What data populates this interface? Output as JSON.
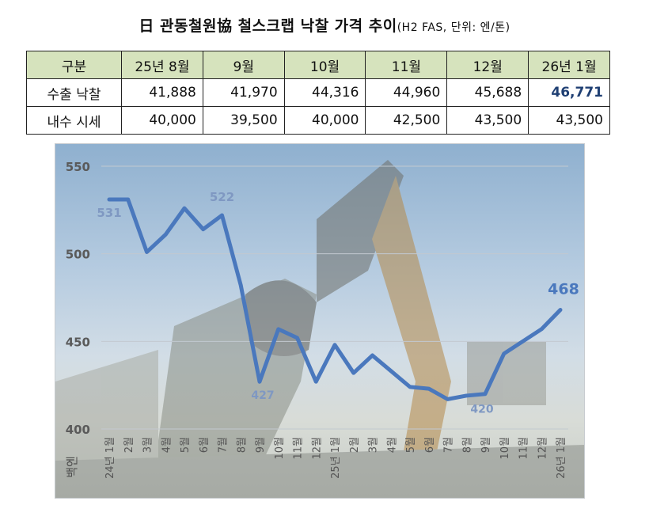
{
  "title": {
    "main": "日 관동철원協 철스크랩 낙찰 가격 추이",
    "sub": "(H2 FAS, 단위: 엔/톤)"
  },
  "table": {
    "header": [
      "구분",
      "25년 8월",
      "9월",
      "10월",
      "11월",
      "12월",
      "26년 1월"
    ],
    "rows": [
      {
        "label": "수출 낙찰",
        "values": [
          "41,888",
          "41,970",
          "44,316",
          "44,960",
          "45,688",
          "46,771"
        ]
      },
      {
        "label": "내수 시세",
        "values": [
          "40,000",
          "39,500",
          "40,000",
          "42,500",
          "43,500",
          "43,500"
        ]
      }
    ]
  },
  "chart_data": {
    "type": "line",
    "ylabel": "백엔",
    "ylim": [
      400,
      550
    ],
    "yticks": [
      "400",
      "450",
      "500",
      "550"
    ],
    "categories": [
      "24년 1월",
      "2월",
      "3월",
      "4월",
      "5월",
      "6월",
      "7월",
      "8월",
      "9월",
      "10월",
      "11월",
      "12월",
      "25년 1월",
      "2월",
      "3월",
      "4월",
      "5월",
      "6월",
      "7월",
      "8월",
      "9월",
      "10월",
      "11월",
      "12월",
      "26년 1월"
    ],
    "values": [
      531,
      531,
      501,
      511,
      526,
      514,
      522,
      482,
      427,
      457,
      452,
      427,
      448,
      432,
      442,
      433,
      424,
      423,
      417,
      419,
      420,
      443,
      450,
      457,
      468
    ],
    "annotations": [
      {
        "index": 0,
        "text": "531"
      },
      {
        "index": 6,
        "text": "522"
      },
      {
        "index": 8,
        "text": "427"
      },
      {
        "index": 20,
        "text": "420"
      },
      {
        "index": 24,
        "text": "468"
      }
    ],
    "line_color": "#4a78bd",
    "label_color": "#7f98c2",
    "grid": true
  }
}
